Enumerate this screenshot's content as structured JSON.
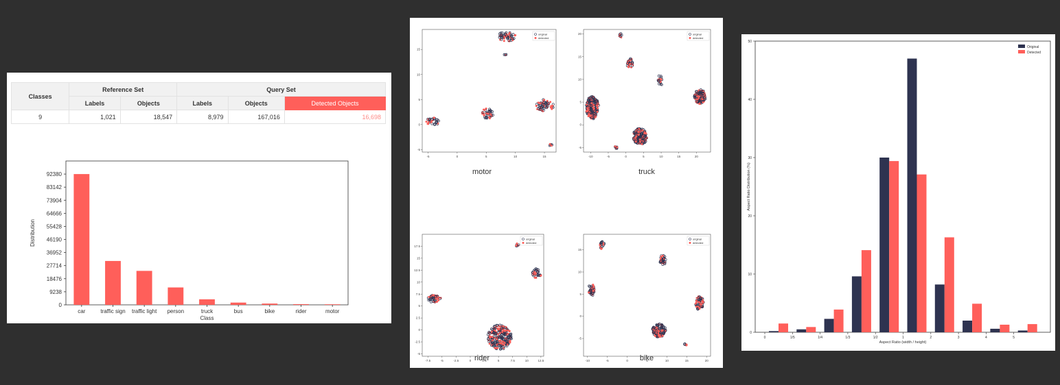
{
  "table": {
    "header_classes": "Classes",
    "header_reference": "Reference Set",
    "header_query": "Query Set",
    "sub_labels": "Labels",
    "sub_objects": "Objects",
    "sub_labels_q": "Labels",
    "sub_objects_q": "Objects",
    "sub_detected": "Detected Objects",
    "classes": "9",
    "ref_labels": "1,021",
    "ref_objects": "18,547",
    "q_labels": "8,979",
    "q_objects": "167,016",
    "q_detected": "16,698"
  },
  "colors": {
    "accent": "#ff5f5a",
    "original": "#2e3350",
    "page_bg": "#2f2f2f"
  },
  "chart_data": [
    {
      "type": "bar",
      "categories": [
        "car",
        "traffic sign",
        "traffic light",
        "person",
        "truck",
        "bus",
        "bike",
        "rider",
        "motor"
      ],
      "values": [
        92380,
        31000,
        24000,
        12300,
        3900,
        1600,
        900,
        500,
        400
      ],
      "xlabel": "Class",
      "ylabel": "Distribution",
      "ylim": [
        0,
        101618
      ],
      "yticks": [
        "0",
        "9238",
        "18476",
        "27714",
        "36952",
        "46190",
        "55428",
        "64666",
        "73904",
        "83142",
        "92380"
      ],
      "color": "#ff5f5a"
    },
    {
      "type": "scatter",
      "title": "motor",
      "legend": [
        "original",
        "detected"
      ],
      "xlim": [
        -6,
        17
      ],
      "ylim": [
        -5.5,
        19
      ],
      "xticks": [
        -5,
        0,
        5,
        10,
        15
      ],
      "yticks": [
        -5,
        0,
        5,
        10,
        15
      ],
      "clusters": [
        {
          "x": -4.2,
          "y": 0.6,
          "rx": 1.1,
          "ry": 0.8,
          "n": 22
        },
        {
          "x": 5.2,
          "y": 2.1,
          "rx": 1.0,
          "ry": 1.2,
          "n": 24
        },
        {
          "x": 8.5,
          "y": 17.6,
          "rx": 1.6,
          "ry": 1.0,
          "n": 34
        },
        {
          "x": 8.3,
          "y": 13.9,
          "rx": 0.3,
          "ry": 0.3,
          "n": 3
        },
        {
          "x": 15.0,
          "y": 3.8,
          "rx": 1.6,
          "ry": 1.2,
          "n": 36
        },
        {
          "x": 16.0,
          "y": -4.1,
          "rx": 0.4,
          "ry": 0.3,
          "n": 4
        }
      ]
    },
    {
      "type": "scatter",
      "title": "truck",
      "legend": [
        "original",
        "detected"
      ],
      "xlim": [
        -12,
        24
      ],
      "ylim": [
        -6,
        21
      ],
      "xticks": [
        -10,
        -5,
        0,
        5,
        10,
        15,
        20
      ],
      "yticks": [
        -5,
        0,
        5,
        10,
        15,
        20
      ],
      "clusters": [
        {
          "x": -9.5,
          "y": 3.8,
          "rx": 1.8,
          "ry": 2.5,
          "n": 150
        },
        {
          "x": -2.8,
          "y": -5.0,
          "rx": 0.5,
          "ry": 0.3,
          "n": 5
        },
        {
          "x": -1.5,
          "y": 19.6,
          "rx": 0.4,
          "ry": 0.5,
          "n": 5
        },
        {
          "x": 1.2,
          "y": 13.6,
          "rx": 1.0,
          "ry": 1.0,
          "n": 20
        },
        {
          "x": 4.0,
          "y": -2.6,
          "rx": 2.0,
          "ry": 1.8,
          "n": 120
        },
        {
          "x": 9.7,
          "y": 9.8,
          "rx": 0.6,
          "ry": 1.4,
          "n": 12
        },
        {
          "x": 21.0,
          "y": 6.2,
          "rx": 1.6,
          "ry": 1.6,
          "n": 90
        }
      ]
    },
    {
      "type": "scatter",
      "title": "rider",
      "legend": [
        "original",
        "detected"
      ],
      "xlim": [
        -8.5,
        13
      ],
      "ylim": [
        -5.5,
        20
      ],
      "xticks": [
        -7.5,
        -5.0,
        -2.5,
        0.0,
        2.5,
        5.0,
        7.5,
        10.0,
        12.5
      ],
      "yticks": [
        -5.0,
        -2.5,
        0.0,
        2.5,
        5.0,
        7.5,
        10.0,
        12.5,
        15.0,
        17.5
      ],
      "clusters": [
        {
          "x": -6.3,
          "y": 6.5,
          "rx": 1.2,
          "ry": 0.8,
          "n": 30
        },
        {
          "x": 5.2,
          "y": -1.5,
          "rx": 2.1,
          "ry": 2.6,
          "n": 160
        },
        {
          "x": 8.2,
          "y": 17.8,
          "rx": 0.4,
          "ry": 0.3,
          "n": 4
        },
        {
          "x": 11.8,
          "y": 11.8,
          "rx": 0.8,
          "ry": 1.1,
          "n": 22
        }
      ]
    },
    {
      "type": "scatter",
      "title": "bike",
      "legend": [
        "original",
        "detected"
      ],
      "xlim": [
        -11,
        21
      ],
      "ylim": [
        -9,
        18.5
      ],
      "xticks": [
        -10,
        -5,
        0,
        5,
        10,
        15,
        20
      ],
      "yticks": [
        -5,
        0,
        5,
        10,
        15
      ],
      "clusters": [
        {
          "x": -9.0,
          "y": 6.0,
          "rx": 0.8,
          "ry": 1.4,
          "n": 30
        },
        {
          "x": -6.3,
          "y": 16.0,
          "rx": 0.6,
          "ry": 0.9,
          "n": 12
        },
        {
          "x": 8.0,
          "y": -3.2,
          "rx": 1.7,
          "ry": 1.5,
          "n": 80
        },
        {
          "x": 9.0,
          "y": 12.7,
          "rx": 0.8,
          "ry": 1.1,
          "n": 30
        },
        {
          "x": 14.7,
          "y": -6.4,
          "rx": 0.4,
          "ry": 0.3,
          "n": 4
        },
        {
          "x": 18.2,
          "y": 3.0,
          "rx": 1.0,
          "ry": 1.6,
          "n": 40
        }
      ]
    },
    {
      "type": "bar",
      "categories": [
        "0",
        "1/5",
        "1/4",
        "1/3",
        "1/2",
        "1",
        "2",
        "3",
        "4",
        "5"
      ],
      "x": [
        0,
        1,
        2,
        3,
        4,
        5,
        6,
        7,
        8,
        9
      ],
      "xtick_labels": [
        "0",
        "1/5",
        "1/4",
        "1/3",
        "1/2",
        "1",
        "2",
        "3",
        "4",
        "5"
      ],
      "series": [
        {
          "name": "Original",
          "values": [
            0.2,
            0.5,
            2.3,
            9.6,
            30.0,
            47.0,
            8.2,
            2.0,
            0.6,
            0.3
          ]
        },
        {
          "name": "Detected",
          "values": [
            1.5,
            0.9,
            3.9,
            14.1,
            29.4,
            27.1,
            16.3,
            4.9,
            1.3,
            1.4
          ]
        }
      ],
      "xlabel": "Aspect Ratio (width / height)",
      "ylabel": "Aspect Ratio Distribution (%)",
      "ylim": [
        0,
        50
      ],
      "yticks": [
        0,
        10,
        20,
        30,
        40,
        50
      ],
      "legend_position": "top-right"
    }
  ]
}
